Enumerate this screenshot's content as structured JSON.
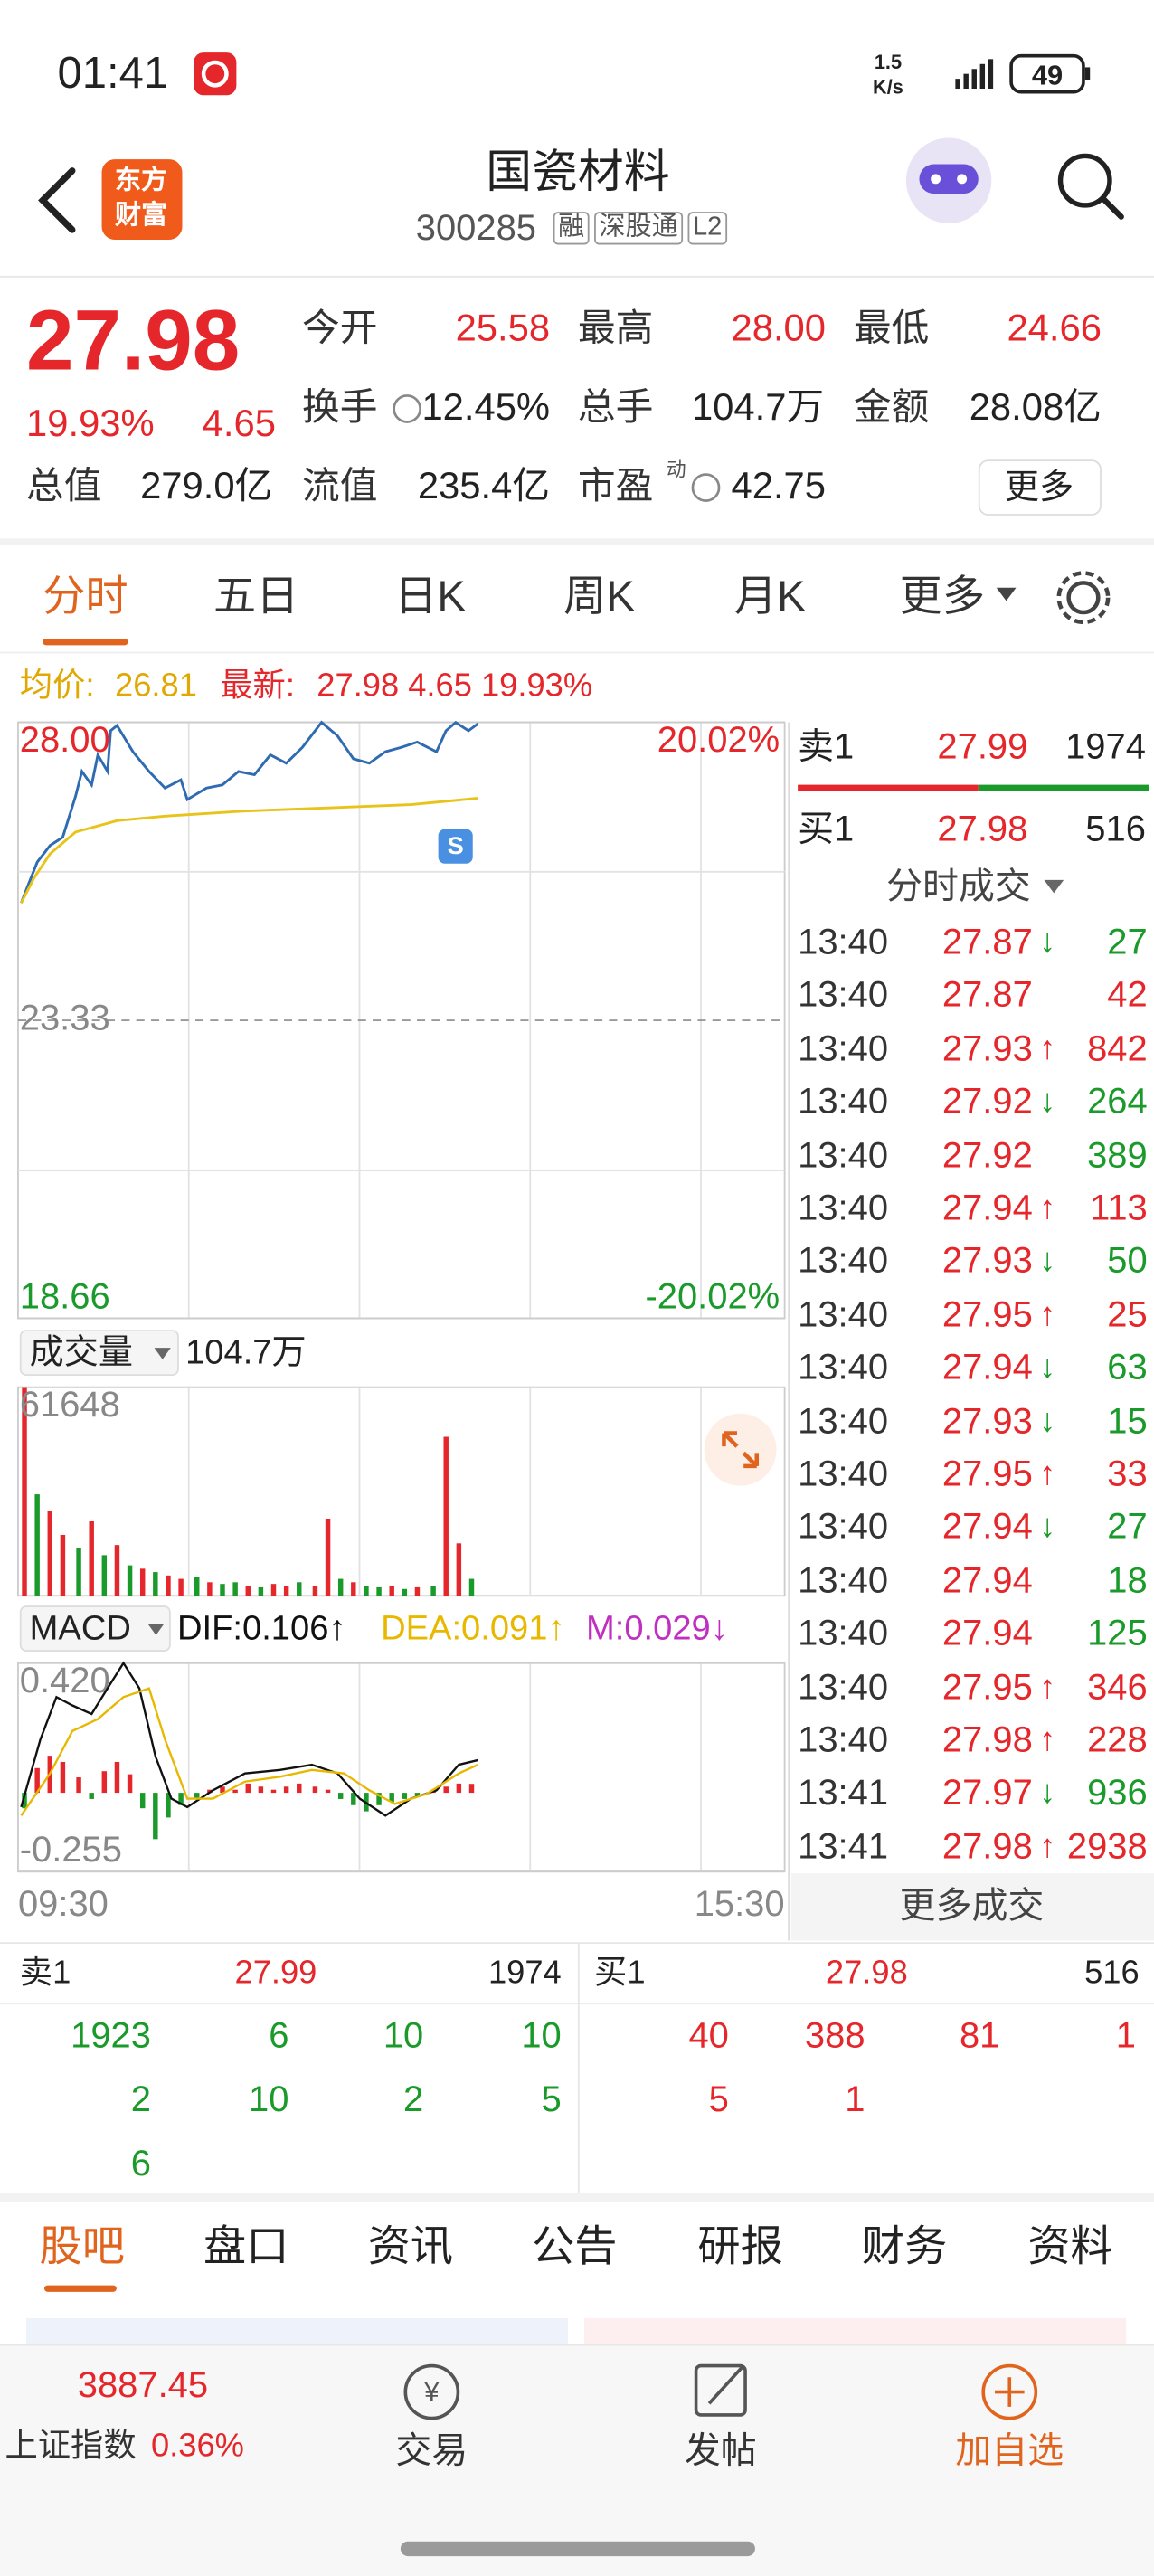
{
  "status_bar": {
    "time": "01:41",
    "speed": "1.5",
    "speed_unit": "K/s",
    "battery": "49"
  },
  "header": {
    "logo": [
      "东方",
      "财富"
    ],
    "title": "国瓷材料",
    "code": "300285",
    "tags": [
      "融",
      "深股通",
      "L2"
    ]
  },
  "quote": {
    "price": "27.98",
    "change_pct": "19.93%",
    "change": "4.65",
    "fields": [
      {
        "label": "今开",
        "value": "25.58",
        "color": "#e5262a"
      },
      {
        "label": "最高",
        "value": "28.00",
        "color": "#e5262a"
      },
      {
        "label": "最低",
        "value": "24.66",
        "color": "#e5262a"
      },
      {
        "label": "换手",
        "value": "12.45%"
      },
      {
        "label": "总手",
        "value": "104.7万"
      },
      {
        "label": "金额",
        "value": "28.08亿"
      },
      {
        "label": "总值",
        "value": "279.0亿"
      },
      {
        "label": "流值",
        "value": "235.4亿"
      },
      {
        "label": "市盈",
        "value": "42.75"
      }
    ],
    "pe_note": "动",
    "more": "更多"
  },
  "tabs": [
    "分时",
    "五日",
    "日K",
    "周K",
    "月K",
    "更多"
  ],
  "info_line": {
    "avg_label": "均价:",
    "avg": "26.81",
    "latest_label": "最新:",
    "latest": "27.98 4.65 19.93%"
  },
  "chart_data": [
    {
      "type": "line",
      "xlim": [
        0,
        240
      ],
      "xticks": [
        {
          "value": 0,
          "label": "09:30"
        },
        {
          "value": 240,
          "label": "15:30"
        }
      ],
      "ylim": [
        18.66,
        28.0
      ],
      "yticks": [
        {
          "value": 28.0,
          "label": "28.00"
        },
        23.33,
        18.66
      ],
      "y2lim": [
        -20.02,
        20.02
      ],
      "y2ticks": [
        {
          "value": 20.02,
          "label": "20.02%"
        },
        {
          "value": -20.02,
          "label": "-20.02%"
        }
      ],
      "series": [
        {
          "color": "#2f6bb0",
          "x": [
            1,
            3,
            6,
            10,
            14,
            18,
            20,
            23,
            25,
            28,
            29,
            31,
            36,
            41,
            46,
            51,
            53,
            59,
            64,
            69,
            74,
            79,
            84,
            89,
            95,
            100,
            105,
            110,
            115,
            120,
            125,
            131,
            134,
            137,
            141,
            144
          ],
          "values": [
            25.17,
            25.43,
            25.81,
            26.07,
            26.2,
            26.84,
            27.23,
            27.02,
            27.49,
            27.23,
            27.87,
            27.95,
            27.54,
            27.23,
            26.97,
            27.1,
            26.79,
            26.97,
            27.02,
            27.23,
            27.18,
            27.49,
            27.36,
            27.61,
            28.0,
            27.79,
            27.43,
            27.36,
            27.54,
            27.61,
            27.69,
            27.54,
            27.87,
            28.0,
            27.87,
            27.98
          ]
        },
        {
          "color": "#e8c31a",
          "x": [
            1,
            5,
            10,
            18,
            31,
            46,
            71,
            97,
            123,
            144
          ],
          "values": [
            25.17,
            25.56,
            25.94,
            26.28,
            26.46,
            26.53,
            26.61,
            26.66,
            26.71,
            26.81
          ]
        }
      ]
    },
    {
      "type": "bar",
      "title": "成交量",
      "total": "104.7万",
      "xlim": [
        0,
        240
      ],
      "ylim": [
        0,
        61648
      ],
      "yticks": [
        61648
      ],
      "x": [
        2,
        6,
        10,
        14,
        19,
        23,
        27,
        31,
        35,
        39,
        43,
        47,
        51,
        56,
        60,
        64,
        68,
        72,
        76,
        80,
        84,
        88,
        93,
        97,
        101,
        105,
        109,
        113,
        117,
        121,
        125,
        130,
        134,
        138,
        142
      ],
      "values": [
        61648,
        30000,
        25000,
        18000,
        14000,
        22000,
        12000,
        15000,
        9000,
        8000,
        7000,
        6000,
        5000,
        5500,
        4000,
        3500,
        4000,
        3000,
        2500,
        3500,
        3000,
        4000,
        3000,
        22800,
        5000,
        4000,
        3000,
        2500,
        3000,
        2000,
        2500,
        3000,
        47000,
        15500,
        5000
      ],
      "colors": [
        "#e5262a",
        "#1a9a2a",
        "#e5262a",
        "#e5262a",
        "#1a9a2a",
        "#e5262a",
        "#1a9a2a",
        "#e5262a",
        "#1a9a2a",
        "#e5262a",
        "#1a9a2a",
        "#e5262a",
        "#e5262a",
        "#1a9a2a",
        "#e5262a",
        "#1a9a2a",
        "#1a9a2a",
        "#e5262a",
        "#1a9a2a",
        "#e5262a",
        "#e5262a",
        "#1a9a2a",
        "#e5262a",
        "#e5262a",
        "#1a9a2a",
        "#e5262a",
        "#1a9a2a",
        "#1a9a2a",
        "#e5262a",
        "#1a9a2a",
        "#e5262a",
        "#1a9a2a",
        "#e5262a",
        "#e5262a",
        "#1a9a2a"
      ]
    },
    {
      "type": "line",
      "title": "MACD",
      "xlim": [
        0,
        240
      ],
      "ylim": [
        -0.255,
        0.42
      ],
      "yticks": [
        {
          "value": 0.42,
          "label": "0.420"
        },
        {
          "value": -0.255,
          "label": "-0.255"
        }
      ],
      "up_color": "#e5262a",
      "down_color": "#1a9a2a",
      "series": [
        {
          "name": "DIF:0.106↑",
          "color": "#111111",
          "x": [
            1,
            7,
            12,
            17,
            23,
            28,
            33,
            38,
            43,
            48,
            53,
            61,
            71,
            82,
            92,
            100,
            107,
            115,
            123,
            131,
            138,
            144
          ],
          "values": [
            -0.046,
            0.173,
            0.31,
            0.283,
            0.255,
            0.338,
            0.42,
            0.338,
            0.118,
            -0.019,
            -0.046,
            0.008,
            0.063,
            0.074,
            0.091,
            0.063,
            -0.019,
            -0.074,
            -0.019,
            0.008,
            0.091,
            0.106
          ]
        },
        {
          "name": "DEA:0.091↑",
          "color": "#e8b800",
          "x": [
            1,
            10,
            17,
            25,
            33,
            41,
            46,
            53,
            61,
            71,
            82,
            92,
            102,
            110,
            118,
            128,
            138,
            144
          ],
          "values": [
            -0.074,
            0.063,
            0.2,
            0.239,
            0.31,
            0.338,
            0.173,
            -0.019,
            -0.019,
            0.036,
            0.052,
            0.074,
            0.063,
            0.008,
            -0.036,
            -0.003,
            0.063,
            0.091
          ]
        },
        {
          "name": "M:0.029↓",
          "type": "bar",
          "color": "#c030c0",
          "x": [
            2,
            6,
            10,
            14,
            19,
            23,
            27,
            31,
            35,
            39,
            43,
            47,
            51,
            56,
            60,
            64,
            68,
            72,
            76,
            80,
            84,
            88,
            93,
            97,
            101,
            105,
            109,
            113,
            117,
            121,
            125,
            130,
            134,
            138,
            142
          ],
          "values": [
            -0.05,
            0.08,
            0.12,
            0.1,
            0.05,
            -0.02,
            0.07,
            0.1,
            0.06,
            -0.05,
            -0.15,
            -0.08,
            -0.04,
            -0.02,
            0.01,
            0.02,
            0.01,
            0.03,
            0.02,
            0.01,
            0.02,
            0.03,
            0.02,
            0.01,
            -0.02,
            -0.04,
            -0.06,
            -0.04,
            -0.03,
            -0.02,
            -0.01,
            0.01,
            0.02,
            0.03,
            0.029
          ]
        }
      ]
    }
  ],
  "side_book": {
    "sell_label": "卖1",
    "sell_price": "27.99",
    "sell_volume": "1974",
    "buy_label": "买1",
    "buy_price": "27.98",
    "buy_volume": "516"
  },
  "trades": {
    "title": "分时成交",
    "more": "更多成交",
    "rows": [
      {
        "time": "13:40",
        "price": "27.87",
        "arrow": "↓",
        "volume": "27",
        "color": "#1a9a2a"
      },
      {
        "time": "13:40",
        "price": "27.87",
        "volume": "42",
        "color": "#e5262a"
      },
      {
        "time": "13:40",
        "price": "27.93",
        "arrow": "↑",
        "volume": "842",
        "color": "#e5262a"
      },
      {
        "time": "13:40",
        "price": "27.92",
        "arrow": "↓",
        "volume": "264",
        "color": "#1a9a2a"
      },
      {
        "time": "13:40",
        "price": "27.92",
        "volume": "389",
        "color": "#1a9a2a"
      },
      {
        "time": "13:40",
        "price": "27.94",
        "arrow": "↑",
        "volume": "113",
        "color": "#e5262a"
      },
      {
        "time": "13:40",
        "price": "27.93",
        "arrow": "↓",
        "volume": "50",
        "color": "#1a9a2a"
      },
      {
        "time": "13:40",
        "price": "27.95",
        "arrow": "↑",
        "volume": "25",
        "color": "#e5262a"
      },
      {
        "time": "13:40",
        "price": "27.94",
        "arrow": "↓",
        "volume": "63",
        "color": "#1a9a2a"
      },
      {
        "time": "13:40",
        "price": "27.93",
        "arrow": "↓",
        "volume": "15",
        "color": "#1a9a2a"
      },
      {
        "time": "13:40",
        "price": "27.95",
        "arrow": "↑",
        "volume": "33",
        "color": "#e5262a"
      },
      {
        "time": "13:40",
        "price": "27.94",
        "arrow": "↓",
        "volume": "27",
        "color": "#1a9a2a"
      },
      {
        "time": "13:40",
        "price": "27.94",
        "volume": "18",
        "color": "#1a9a2a"
      },
      {
        "time": "13:40",
        "price": "27.94",
        "volume": "125",
        "color": "#1a9a2a"
      },
      {
        "time": "13:40",
        "price": "27.95",
        "arrow": "↑",
        "volume": "346",
        "color": "#e5262a"
      },
      {
        "time": "13:40",
        "price": "27.98",
        "arrow": "↑",
        "volume": "228",
        "color": "#e5262a"
      },
      {
        "time": "13:41",
        "price": "27.97",
        "arrow": "↓",
        "volume": "936",
        "color": "#1a9a2a"
      },
      {
        "time": "13:41",
        "price": "27.98",
        "arrow": "↑",
        "volume": "2938",
        "color": "#e5262a"
      }
    ]
  },
  "order_book": {
    "sell": {
      "label": "卖1",
      "price": "27.99",
      "volume": "1974",
      "queue": [
        [
          "1923",
          "6",
          "10",
          "10"
        ],
        [
          "2",
          "10",
          "2",
          "5"
        ],
        [
          "6"
        ]
      ]
    },
    "buy": {
      "label": "买1",
      "price": "27.98",
      "volume": "516",
      "queue": [
        [
          "40",
          "388",
          "81",
          "1"
        ],
        [
          "5",
          "1"
        ]
      ]
    }
  },
  "bottom_tabs": [
    "股吧",
    "盘口",
    "资讯",
    "公告",
    "研报",
    "财务",
    "资料"
  ],
  "bottom_nav": {
    "index_value": "3887.45",
    "index_name": "上证指数",
    "index_change": "0.36%",
    "items": [
      "交易",
      "发帖",
      "加自选"
    ]
  }
}
